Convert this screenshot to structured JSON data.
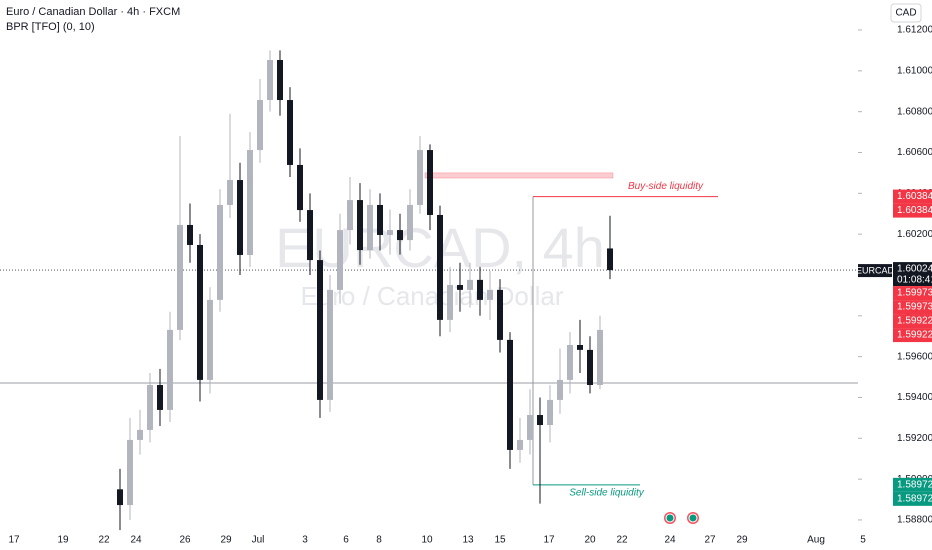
{
  "chart_data": {
    "type": "candlestick",
    "title": "Euro / Canadian Dollar · 4h · FXCM",
    "indicator": "BPR [TFO] (0, 10)",
    "currency": "CAD",
    "watermark": {
      "symbol": "EURCAD, 4h",
      "description": "Euro / Canadian Dollar"
    },
    "bull_color": "#b2b5be",
    "bear_color": "#131722",
    "x": [
      0,
      1,
      2,
      3,
      4,
      5,
      6,
      7,
      8,
      9,
      10,
      11,
      12,
      13,
      14,
      15,
      16,
      17,
      18,
      19,
      20,
      21,
      22,
      23,
      24,
      25,
      26,
      27,
      28,
      29,
      30,
      31,
      32,
      33,
      34,
      35,
      36,
      37,
      38,
      39,
      40,
      41,
      42,
      43,
      44,
      45,
      46,
      47,
      48,
      49
    ],
    "open": [
      1.5895,
      1.58873,
      1.59192,
      1.59241,
      1.59461,
      1.59339,
      1.59731,
      1.60245,
      1.60147,
      1.59486,
      1.59878,
      1.60343,
      1.60465,
      1.60098,
      1.60612,
      1.60857,
      1.61053,
      1.60857,
      1.60539,
      1.60318,
      1.60073,
      1.59388,
      1.59927,
      1.6022,
      1.60367,
      1.60122,
      1.60343,
      1.60196,
      1.6022,
      1.60171,
      1.60343,
      1.60612,
      1.60294,
      1.5978,
      1.59951,
      1.59927,
      1.59976,
      1.59878,
      1.59927,
      1.59682,
      1.59143,
      1.59192,
      1.59314,
      1.59265,
      1.59388,
      1.59486,
      1.59657,
      1.59633,
      1.59461,
      1.6013
    ],
    "high": [
      1.5905,
      1.593,
      1.5934,
      1.5952,
      1.5954,
      1.5982,
      1.6068,
      1.6035,
      1.602,
      1.5994,
      1.6042,
      1.6079,
      1.6055,
      1.607,
      1.6096,
      1.611,
      1.611,
      1.6092,
      1.6062,
      1.604,
      1.6012,
      1.6,
      1.603,
      1.6048,
      1.6045,
      1.6042,
      1.604,
      1.6032,
      1.603,
      1.6042,
      1.6068,
      1.6064,
      1.6034,
      1.6004,
      1.6006,
      1.6006,
      1.6004,
      1.6002,
      1.5998,
      1.5972,
      1.593,
      1.5944,
      1.594,
      1.5946,
      1.5964,
      1.5972,
      1.5978,
      1.597,
      1.598,
      1.6029
    ],
    "low": [
      1.5875,
      1.588,
      1.5912,
      1.5918,
      1.5926,
      1.5928,
      1.5968,
      1.6006,
      1.5938,
      1.5942,
      1.5982,
      1.6028,
      1.6,
      1.6004,
      1.6055,
      1.608,
      1.6078,
      1.6048,
      1.6026,
      1.6,
      1.593,
      1.5933,
      1.5986,
      1.6015,
      1.6005,
      1.6008,
      1.6012,
      1.601,
      1.601,
      1.6012,
      1.603,
      1.6022,
      1.597,
      1.5972,
      1.5982,
      1.5984,
      1.598,
      1.5978,
      1.5962,
      1.5905,
      1.5908,
      1.5912,
      1.5888,
      1.5918,
      1.5932,
      1.5942,
      1.5952,
      1.5942,
      1.5944,
      1.5998
    ],
    "close": [
      1.58873,
      1.59192,
      1.59241,
      1.59461,
      1.59339,
      1.59731,
      1.60245,
      1.60147,
      1.59486,
      1.59878,
      1.60343,
      1.60465,
      1.60098,
      1.60612,
      1.60857,
      1.61053,
      1.60857,
      1.60539,
      1.60318,
      1.60073,
      1.59388,
      1.59927,
      1.6022,
      1.60367,
      1.60122,
      1.60343,
      1.60196,
      1.6022,
      1.60171,
      1.60343,
      1.60612,
      1.60294,
      1.5978,
      1.59951,
      1.59927,
      1.59976,
      1.59878,
      1.59927,
      1.59682,
      1.59143,
      1.59192,
      1.59314,
      1.59265,
      1.59388,
      1.59486,
      1.59657,
      1.59633,
      1.59461,
      1.59731,
      1.60024
    ],
    "xlim": [
      -12,
      75.2
    ],
    "xticks": [
      {
        "value": -10.6,
        "label": "17"
      },
      {
        "value": -5.7,
        "label": "19"
      },
      {
        "value": -1.6,
        "label": "22"
      },
      {
        "value": 1.6,
        "label": "24"
      },
      {
        "value": 6.5,
        "label": "26"
      },
      {
        "value": 10.6,
        "label": "29"
      },
      {
        "value": 13.8,
        "label": "Jul"
      },
      {
        "value": 18.5,
        "label": "3"
      },
      {
        "value": 22.6,
        "label": "6"
      },
      {
        "value": 25.9,
        "label": "8"
      },
      {
        "value": 30.7,
        "label": "10"
      },
      {
        "value": 34.8,
        "label": "13"
      },
      {
        "value": 38,
        "label": "15"
      },
      {
        "value": 42.9,
        "label": "17"
      },
      {
        "value": 47,
        "label": "20"
      },
      {
        "value": 50.2,
        "label": "22"
      },
      {
        "value": 55,
        "label": "24"
      },
      {
        "value": 59,
        "label": "27"
      },
      {
        "value": 62.2,
        "label": "29"
      },
      {
        "value": 69.6,
        "label": "Aug"
      },
      {
        "value": 74.3,
        "label": "5"
      }
    ],
    "ylim": [
      1.58741,
      1.61347
    ],
    "yticks": [
      {
        "value": 1.612,
        "label": "1.61200"
      },
      {
        "value": 1.61,
        "label": "1.61000"
      },
      {
        "value": 1.608,
        "label": "1.60800"
      },
      {
        "value": 1.606,
        "label": "1.60600"
      },
      {
        "value": 1.604,
        "label": "1.60400"
      },
      {
        "value": 1.602,
        "label": "1.60200"
      },
      {
        "value": 1.6,
        "label": "1.60000"
      },
      {
        "value": 1.598,
        "label": "1.59800"
      },
      {
        "value": 1.596,
        "label": "1.59600"
      },
      {
        "value": 1.594,
        "label": "1.59400"
      },
      {
        "value": 1.592,
        "label": "1.59200"
      },
      {
        "value": 1.59,
        "label": "1.59000"
      },
      {
        "value": 1.588,
        "label": "1.58800"
      }
    ],
    "grid": false,
    "last_price": {
      "symbol": "EURCAD",
      "value": 1.60024,
      "countdown": "01:08:41"
    },
    "price_labels": [
      {
        "value": 1.60384,
        "color": "#f23645"
      },
      {
        "value": 1.60384,
        "color": "#f23645"
      },
      {
        "value": 1.59973,
        "color": "#f23645"
      },
      {
        "value": 1.59973,
        "color": "#f23645"
      },
      {
        "value": 1.59922,
        "color": "#f23645"
      },
      {
        "value": 1.59922,
        "color": "#f23645"
      },
      {
        "value": 1.58972,
        "color": "#089981"
      },
      {
        "value": 1.58972,
        "color": "#089981"
      }
    ],
    "horizontal_line": 1.59471,
    "bpr_zone": {
      "y": [
        1.60475,
        1.605
      ],
      "x": [
        30.5,
        49.3
      ]
    },
    "buy_side": {
      "label": "Buy-side liquidity",
      "value": 1.60384,
      "x": [
        41.3,
        59.8
      ],
      "color": "#f23645"
    },
    "sell_side": {
      "label": "Sell-side liquidity",
      "value": 1.58972,
      "x": [
        41.3,
        52
      ],
      "color": "#089981"
    }
  }
}
